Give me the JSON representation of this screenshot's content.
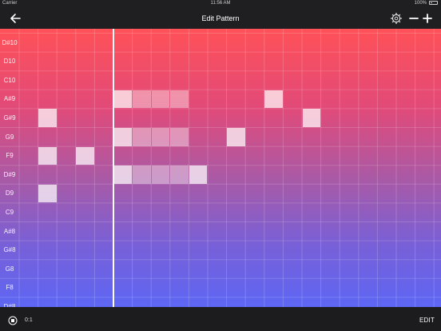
{
  "status": {
    "carrier": "Carrier",
    "time": "11:56 AM",
    "battery": "100%"
  },
  "nav": {
    "title": "Edit Pattern",
    "icons": [
      "back-arrow-icon",
      "gear-icon",
      "minus-icon",
      "plus-icon"
    ]
  },
  "grid": {
    "row_labels": [
      "D#10",
      "D10",
      "C10",
      "A#9",
      "G#9",
      "G9",
      "F9",
      "D#9",
      "D9",
      "C9",
      "A#8",
      "G#8",
      "G8",
      "F8",
      "D#8"
    ],
    "columns": 23,
    "notes": [
      {
        "row": 3,
        "col": 5
      },
      {
        "row": 3,
        "col": 6,
        "faint": true
      },
      {
        "row": 3,
        "col": 7,
        "faint": true
      },
      {
        "row": 3,
        "col": 8,
        "faint": true
      },
      {
        "row": 3,
        "col": 13
      },
      {
        "row": 4,
        "col": 1
      },
      {
        "row": 4,
        "col": 15
      },
      {
        "row": 5,
        "col": 5
      },
      {
        "row": 5,
        "col": 6,
        "faint": true
      },
      {
        "row": 5,
        "col": 7,
        "faint": true
      },
      {
        "row": 5,
        "col": 8,
        "faint": true
      },
      {
        "row": 5,
        "col": 11
      },
      {
        "row": 6,
        "col": 1
      },
      {
        "row": 6,
        "col": 3
      },
      {
        "row": 7,
        "col": 5
      },
      {
        "row": 7,
        "col": 6,
        "faint": true
      },
      {
        "row": 7,
        "col": 7,
        "faint": true
      },
      {
        "row": 7,
        "col": 8,
        "faint": true
      },
      {
        "row": 7,
        "col": 9
      },
      {
        "row": 8,
        "col": 1
      }
    ],
    "playhead_column": 5,
    "colors": {
      "top": "#ff5158",
      "bottom": "#5d66f4",
      "playhead": "#ffffff"
    }
  },
  "bottom": {
    "position": "0:1",
    "edit_label": "EDIT",
    "stop_icon": "stop-circle-icon"
  }
}
